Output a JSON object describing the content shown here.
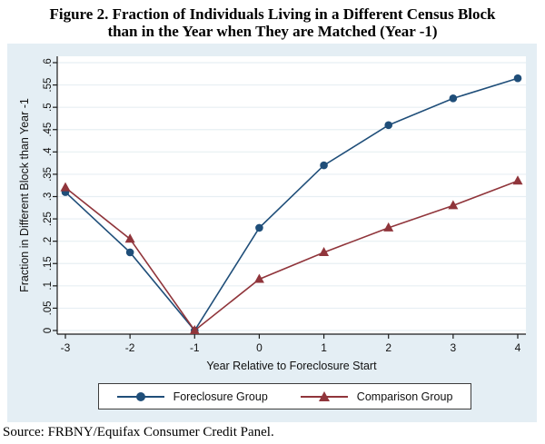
{
  "title": {
    "line1": "Figure 2. Fraction of Individuals Living in a Different Census Block",
    "line2": "than in the Year when They are Matched (Year -1)"
  },
  "source": "Source: FRBNY/Equifax Consumer Credit Panel.",
  "colors": {
    "graph_background": "#e4eef4",
    "plot_background": "#ffffff",
    "gridline": "#e7eff3",
    "axis": "#1a1a1a",
    "foreclosure_series": "#1F4E79",
    "comparison_series": "#90353B",
    "legend_border": "#3d3d3d"
  },
  "chart_data": {
    "type": "line",
    "title": "Fraction of Individuals Living in a Different Census Block than in the Year when They are Matched (Year -1)",
    "xlabel": "Year Relative to Foreclosure Start",
    "ylabel": "Fraction in Different Block than Year -1",
    "x": [
      -3,
      -2,
      -1,
      0,
      1,
      2,
      3,
      4
    ],
    "series": [
      {
        "name": "Foreclosure Group",
        "marker": "circle",
        "color": "#1F4E79",
        "values": [
          0.31,
          0.175,
          0,
          0.23,
          0.37,
          0.46,
          0.52,
          0.565
        ]
      },
      {
        "name": "Comparison Group",
        "marker": "triangle",
        "color": "#90353B",
        "values": [
          0.32,
          0.205,
          0,
          0.115,
          0.175,
          0.23,
          0.28,
          0.335
        ]
      }
    ],
    "xlim": [
      -3,
      4
    ],
    "ylim": [
      0,
      0.6
    ],
    "xticks": [
      -3,
      -2,
      -1,
      0,
      1,
      2,
      3,
      4
    ],
    "xtick_labels": [
      "-3",
      "-2",
      "-1",
      "0",
      "1",
      "2",
      "3",
      "4"
    ],
    "yticks": [
      0,
      0.05,
      0.1,
      0.15,
      0.2,
      0.25,
      0.3,
      0.35,
      0.4,
      0.45,
      0.5,
      0.55,
      0.6
    ],
    "ytick_labels": [
      "0",
      ".05",
      ".1",
      ".15",
      ".2",
      ".25",
      ".3",
      ".35",
      ".4",
      ".45",
      ".5",
      ".55",
      ".6"
    ],
    "grid": "horizontal",
    "ytick_label_angle": 90,
    "legend_position": "bottom"
  },
  "legend": {
    "items": [
      {
        "label": "Foreclosure Group"
      },
      {
        "label": "Comparison Group"
      }
    ]
  }
}
